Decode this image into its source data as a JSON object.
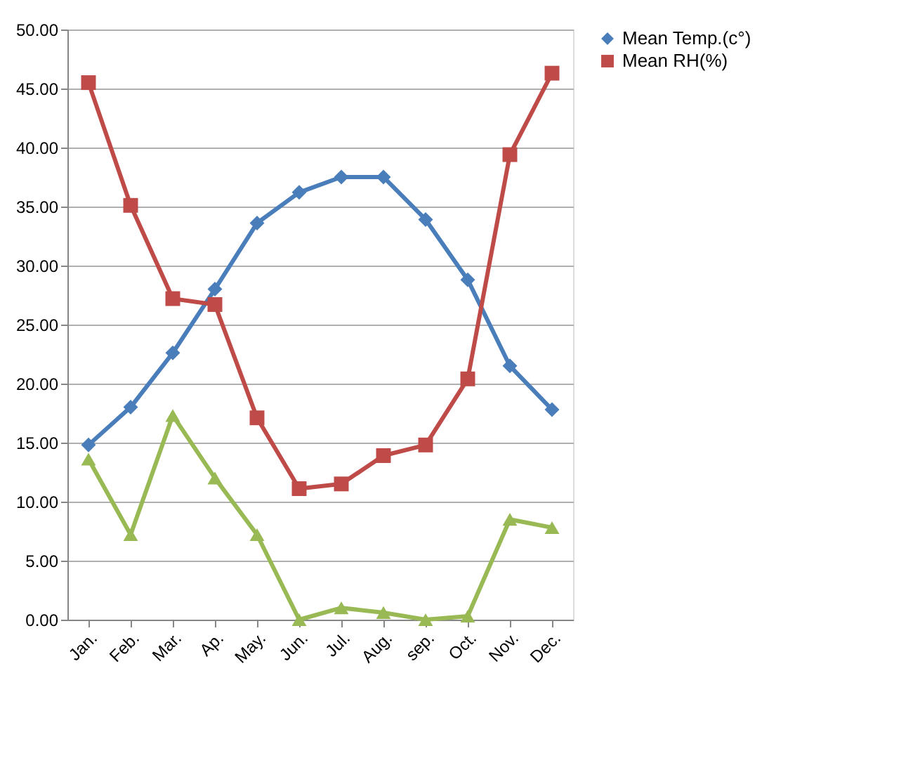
{
  "chart_data": {
    "type": "line",
    "categories": [
      "Jan.",
      "Feb.",
      "Mar.",
      "Ap.",
      "May.",
      "Jun.",
      "Jul.",
      "Aug.",
      "sep.",
      "Oct.",
      "Nov.",
      "Dec."
    ],
    "series": [
      {
        "name": "Mean Temp.(c°)",
        "color": "#4a7ebb",
        "marker": "diamond",
        "values": [
          14.8,
          18.0,
          22.6,
          28.0,
          33.6,
          36.2,
          37.5,
          37.5,
          33.9,
          28.8,
          21.5,
          17.8
        ]
      },
      {
        "name": "Mean RH(%)",
        "color": "#be4b48",
        "marker": "square",
        "values": [
          45.5,
          35.1,
          27.2,
          26.7,
          17.1,
          11.1,
          11.5,
          13.9,
          14.8,
          20.4,
          39.4,
          46.3
        ]
      },
      {
        "color": "#98b954",
        "marker": "triangle",
        "values": [
          13.6,
          7.2,
          17.3,
          12.0,
          7.2,
          0.0,
          1.0,
          0.6,
          0.0,
          0.3,
          8.5,
          7.8
        ]
      }
    ],
    "ylim": [
      0,
      50
    ],
    "yticks": [
      {
        "value": 0,
        "label": "0.00"
      },
      {
        "value": 5,
        "label": "5.00"
      },
      {
        "value": 10,
        "label": "10.00"
      },
      {
        "value": 15,
        "label": "15.00"
      },
      {
        "value": 20,
        "label": "20.00"
      },
      {
        "value": 25,
        "label": "25.00"
      },
      {
        "value": 30,
        "label": "30.00"
      },
      {
        "value": 35,
        "label": "35.00"
      },
      {
        "value": 40,
        "label": "40.00"
      },
      {
        "value": 45,
        "label": "45.00"
      },
      {
        "value": 50,
        "label": "50.00"
      }
    ],
    "grid": "y",
    "legend": "top right",
    "line_style": "solid"
  }
}
